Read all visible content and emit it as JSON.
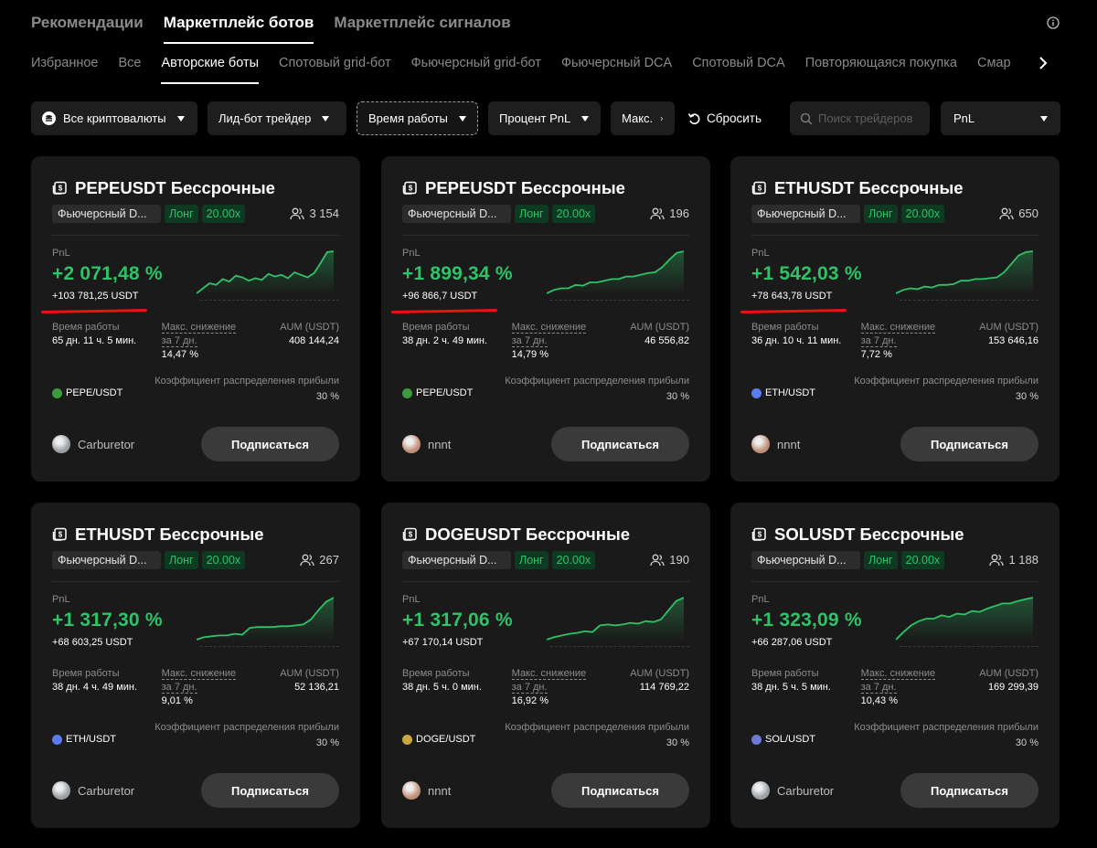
{
  "top_tabs": [
    {
      "label": "Рекомендации",
      "active": false
    },
    {
      "label": "Маркетплейс ботов",
      "active": true
    },
    {
      "label": "Маркетплейс сигналов",
      "active": false
    }
  ],
  "category_tabs": [
    {
      "label": "Избранное",
      "active": false
    },
    {
      "label": "Все",
      "active": false
    },
    {
      "label": "Авторские боты",
      "active": true
    },
    {
      "label": "Спотовый grid-бот",
      "active": false
    },
    {
      "label": "Фьючерсный grid-бот",
      "active": false
    },
    {
      "label": "Фьючерсный DCA",
      "active": false
    },
    {
      "label": "Спотовый DCA",
      "active": false
    },
    {
      "label": "Повторяющаяся покупка",
      "active": false
    },
    {
      "label": "Смар",
      "active": false
    }
  ],
  "filters": {
    "crypto": "Все криптовалюты",
    "trader": "Лид-бот трейдер",
    "runtime": "Время работы",
    "pnl_percent": "Процент PnL",
    "max": "Макс.",
    "reset": "Сбросить",
    "search_placeholder": "Поиск трейдеров",
    "sort": "PnL"
  },
  "colors": {
    "background": "#000000",
    "card": "#1a1a1a",
    "positive": "#2fc267",
    "tag_green_bg": "#0f3a22",
    "highlight_underline": "#e11111"
  },
  "subscribe_label": "Подписаться",
  "labels": {
    "pnl": "PnL",
    "runtime": "Время работы",
    "max_drawdown": "Макс. снижение",
    "max_drawdown_period": "за 7 дн.",
    "aum": "AUM (USDT)",
    "profit_share": "Коэффициент распределения прибыли"
  },
  "cards": [
    {
      "title": "PEPEUSDT Бессрочные",
      "type": "Фьючерсный D...",
      "direction": "Лонг",
      "leverage": "20.00x",
      "subscribers": "3 154",
      "pnl_percent": "+2 071,48 %",
      "pnl_abs": "+103 781,25 USDT",
      "highlighted": true,
      "runtime": "65 дн. 11 ч. 5 мин.",
      "max_drawdown": "14,47 %",
      "aum": "408 144,24",
      "pair": "PEPE/USDT",
      "pair_icon_color": "#3b9a3f",
      "profit_share": "30 %",
      "owner": "Carburetor",
      "avatar_color": "#9aa0a6",
      "spark": [
        0.0,
        0.12,
        0.24,
        0.2,
        0.34,
        0.28,
        0.42,
        0.38,
        0.3,
        0.36,
        0.32,
        0.46,
        0.4,
        0.44,
        0.36,
        0.5,
        0.44,
        0.38,
        0.48,
        0.72,
        0.98,
        1.0
      ]
    },
    {
      "title": "PEPEUSDT Бессрочные",
      "type": "Фьючерсный D...",
      "direction": "Лонг",
      "leverage": "20.00x",
      "subscribers": "196",
      "pnl_percent": "+1 899,34 %",
      "pnl_abs": "+96 866,7 USDT",
      "highlighted": true,
      "runtime": "38 дн. 2 ч. 49 мин.",
      "max_drawdown": "14,79 %",
      "aum": "46 556,82",
      "pair": "PEPE/USDT",
      "pair_icon_color": "#3b9a3f",
      "profit_share": "30 %",
      "owner": "nnnt",
      "avatar_color": "#c08f78",
      "spark": [
        0.0,
        0.08,
        0.12,
        0.12,
        0.2,
        0.18,
        0.26,
        0.26,
        0.3,
        0.34,
        0.34,
        0.4,
        0.4,
        0.44,
        0.48,
        0.5,
        0.62,
        0.8,
        0.96,
        1.0
      ]
    },
    {
      "title": "ETHUSDT Бессрочные",
      "type": "Фьючерсный D...",
      "direction": "Лонг",
      "leverage": "20.00x",
      "subscribers": "650",
      "pnl_percent": "+1 542,03 %",
      "pnl_abs": "+78 643,78 USDT",
      "highlighted": true,
      "runtime": "36 дн. 10 ч. 11 мин.",
      "max_drawdown": "7,72 %",
      "aum": "153 646,16",
      "pair": "ETH/USDT",
      "pair_icon_color": "#5b7cf0",
      "profit_share": "30 %",
      "owner": "nnnt",
      "avatar_color": "#c08f78",
      "spark": [
        0.0,
        0.08,
        0.12,
        0.1,
        0.16,
        0.14,
        0.2,
        0.2,
        0.22,
        0.3,
        0.3,
        0.34,
        0.34,
        0.36,
        0.38,
        0.5,
        0.7,
        0.9,
        0.98,
        1.0
      ]
    },
    {
      "title": "ETHUSDT Бессрочные",
      "type": "Фьючерсный D...",
      "direction": "Лонг",
      "leverage": "20.00x",
      "subscribers": "267",
      "pnl_percent": "+1 317,30 %",
      "pnl_abs": "+68 603,25 USDT",
      "highlighted": false,
      "runtime": "38 дн. 4 ч. 49 мин.",
      "max_drawdown": "9,01 %",
      "aum": "52 136,21",
      "pair": "ETH/USDT",
      "pair_icon_color": "#5b7cf0",
      "profit_share": "30 %",
      "owner": "Carburetor",
      "avatar_color": "#9aa0a6",
      "spark": [
        0.0,
        0.06,
        0.08,
        0.1,
        0.1,
        0.14,
        0.12,
        0.28,
        0.3,
        0.3,
        0.3,
        0.32,
        0.32,
        0.34,
        0.36,
        0.48,
        0.7,
        0.9,
        1.0
      ]
    },
    {
      "title": "DOGEUSDT Бессрочные",
      "type": "Фьючерсный D...",
      "direction": "Лонг",
      "leverage": "20.00x",
      "subscribers": "190",
      "pnl_percent": "+1 317,06 %",
      "pnl_abs": "+67 170,14 USDT",
      "highlighted": false,
      "runtime": "38 дн. 5 ч. 0 мин.",
      "max_drawdown": "16,92 %",
      "aum": "114 769,22",
      "pair": "DOGE/USDT",
      "pair_icon_color": "#c9a844",
      "profit_share": "30 %",
      "owner": "nnnt",
      "avatar_color": "#c08f78",
      "spark": [
        0.0,
        0.06,
        0.1,
        0.14,
        0.16,
        0.2,
        0.18,
        0.34,
        0.36,
        0.34,
        0.36,
        0.4,
        0.38,
        0.44,
        0.42,
        0.48,
        0.7,
        0.92,
        1.0
      ]
    },
    {
      "title": "SOLUSDT Бессрочные",
      "type": "Фьючерсный D...",
      "direction": "Лонг",
      "leverage": "20.00x",
      "subscribers": "1 188",
      "pnl_percent": "+1 323,09 %",
      "pnl_abs": "+66 287,06 USDT",
      "highlighted": false,
      "runtime": "38 дн. 5 ч. 5 мин.",
      "max_drawdown": "10,43 %",
      "aum": "169 299,39",
      "pair": "SOL/USDT",
      "pair_icon_color": "#6a7bd6",
      "profit_share": "30 %",
      "owner": "Carburetor",
      "avatar_color": "#9aa0a6",
      "spark": [
        0.0,
        0.18,
        0.34,
        0.44,
        0.5,
        0.5,
        0.58,
        0.54,
        0.62,
        0.6,
        0.68,
        0.66,
        0.74,
        0.8,
        0.86,
        0.86,
        0.92,
        0.96,
        1.0
      ]
    }
  ]
}
